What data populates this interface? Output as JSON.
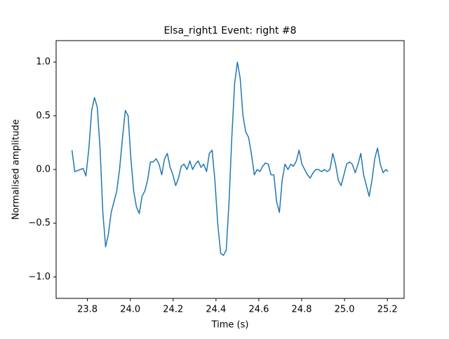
{
  "chart_data": {
    "type": "line",
    "title": "Elsa_right1 Event: right #8",
    "x_label": "Time (s)",
    "y_label": "Normalised amplitude",
    "x": [
      23.728,
      23.741,
      23.754,
      23.767,
      23.78,
      23.793,
      23.807,
      23.82,
      23.833,
      23.846,
      23.859,
      23.872,
      23.885,
      23.898,
      23.911,
      23.924,
      23.937,
      23.95,
      23.964,
      23.977,
      23.99,
      24.003,
      24.016,
      24.029,
      24.042,
      24.055,
      24.068,
      24.081,
      24.094,
      24.107,
      24.121,
      24.134,
      24.147,
      24.16,
      24.173,
      24.186,
      24.199,
      24.212,
      24.225,
      24.238,
      24.251,
      24.265,
      24.278,
      24.291,
      24.304,
      24.317,
      24.33,
      24.343,
      24.356,
      24.369,
      24.382,
      24.395,
      24.408,
      24.422,
      24.435,
      24.448,
      24.461,
      24.474,
      24.487,
      24.5,
      24.513,
      24.526,
      24.539,
      24.552,
      24.565,
      24.579,
      24.592,
      24.605,
      24.618,
      24.631,
      24.644,
      24.657,
      24.67,
      24.683,
      24.696,
      24.709,
      24.722,
      24.736,
      24.749,
      24.762,
      24.775,
      24.788,
      24.801,
      24.814,
      24.827,
      24.84,
      24.853,
      24.866,
      24.879,
      24.893,
      24.906,
      24.919,
      24.932,
      24.945,
      24.958,
      24.971,
      24.984,
      24.997,
      25.01,
      25.023,
      25.036,
      25.05,
      25.063,
      25.076,
      25.089,
      25.102,
      25.115,
      25.128,
      25.141,
      25.154,
      25.167,
      25.18,
      25.193,
      25.203
    ],
    "series": [
      {
        "color": "#1f77b4",
        "values": [
          0.18,
          -0.02,
          -0.01,
          0.0,
          0.01,
          -0.06,
          0.2,
          0.55,
          0.67,
          0.58,
          0.2,
          -0.4,
          -0.72,
          -0.6,
          -0.4,
          -0.3,
          -0.2,
          0.0,
          0.3,
          0.55,
          0.5,
          0.1,
          -0.2,
          -0.35,
          -0.41,
          -0.25,
          -0.2,
          -0.1,
          0.07,
          0.07,
          0.1,
          0.05,
          -0.05,
          0.1,
          0.15,
          0.02,
          -0.05,
          -0.15,
          -0.08,
          0.03,
          0.05,
          0.0,
          0.08,
          0.0,
          0.05,
          0.08,
          0.02,
          0.05,
          -0.02,
          0.15,
          0.18,
          -0.1,
          -0.5,
          -0.78,
          -0.8,
          -0.75,
          -0.3,
          0.3,
          0.8,
          1.0,
          0.85,
          0.5,
          0.35,
          0.3,
          0.15,
          -0.05,
          0.0,
          -0.02,
          0.03,
          0.06,
          0.05,
          -0.05,
          -0.05,
          -0.3,
          -0.4,
          -0.1,
          0.05,
          0.0,
          0.05,
          0.03,
          0.08,
          0.18,
          0.05,
          0.0,
          -0.05,
          -0.08,
          -0.03,
          0.0,
          0.0,
          -0.02,
          0.0,
          -0.02,
          0.0,
          0.15,
          0.05,
          -0.1,
          -0.15,
          -0.05,
          0.05,
          0.07,
          0.05,
          -0.03,
          0.05,
          0.15,
          -0.05,
          -0.15,
          -0.25,
          -0.1,
          0.1,
          0.2,
          0.05,
          -0.03,
          0.0,
          -0.02
        ]
      }
    ],
    "xlim": [
      23.654,
      25.278
    ],
    "ylim": [
      -1.2,
      1.2
    ],
    "xticks": [
      23.8,
      {
        "value": 24.0,
        "label": "24.0"
      },
      24.2,
      24.4,
      24.6,
      24.8,
      {
        "value": 25.0,
        "label": "25.0"
      },
      25.2
    ],
    "yticks": [
      {
        "value": -1.0,
        "label": "−1.0"
      },
      {
        "value": -0.5,
        "label": "−0.5"
      },
      {
        "value": 0.0,
        "label": "0.0"
      },
      {
        "value": 0.5,
        "label": "0.5"
      },
      {
        "value": 1.0,
        "label": "1.0"
      }
    ]
  }
}
